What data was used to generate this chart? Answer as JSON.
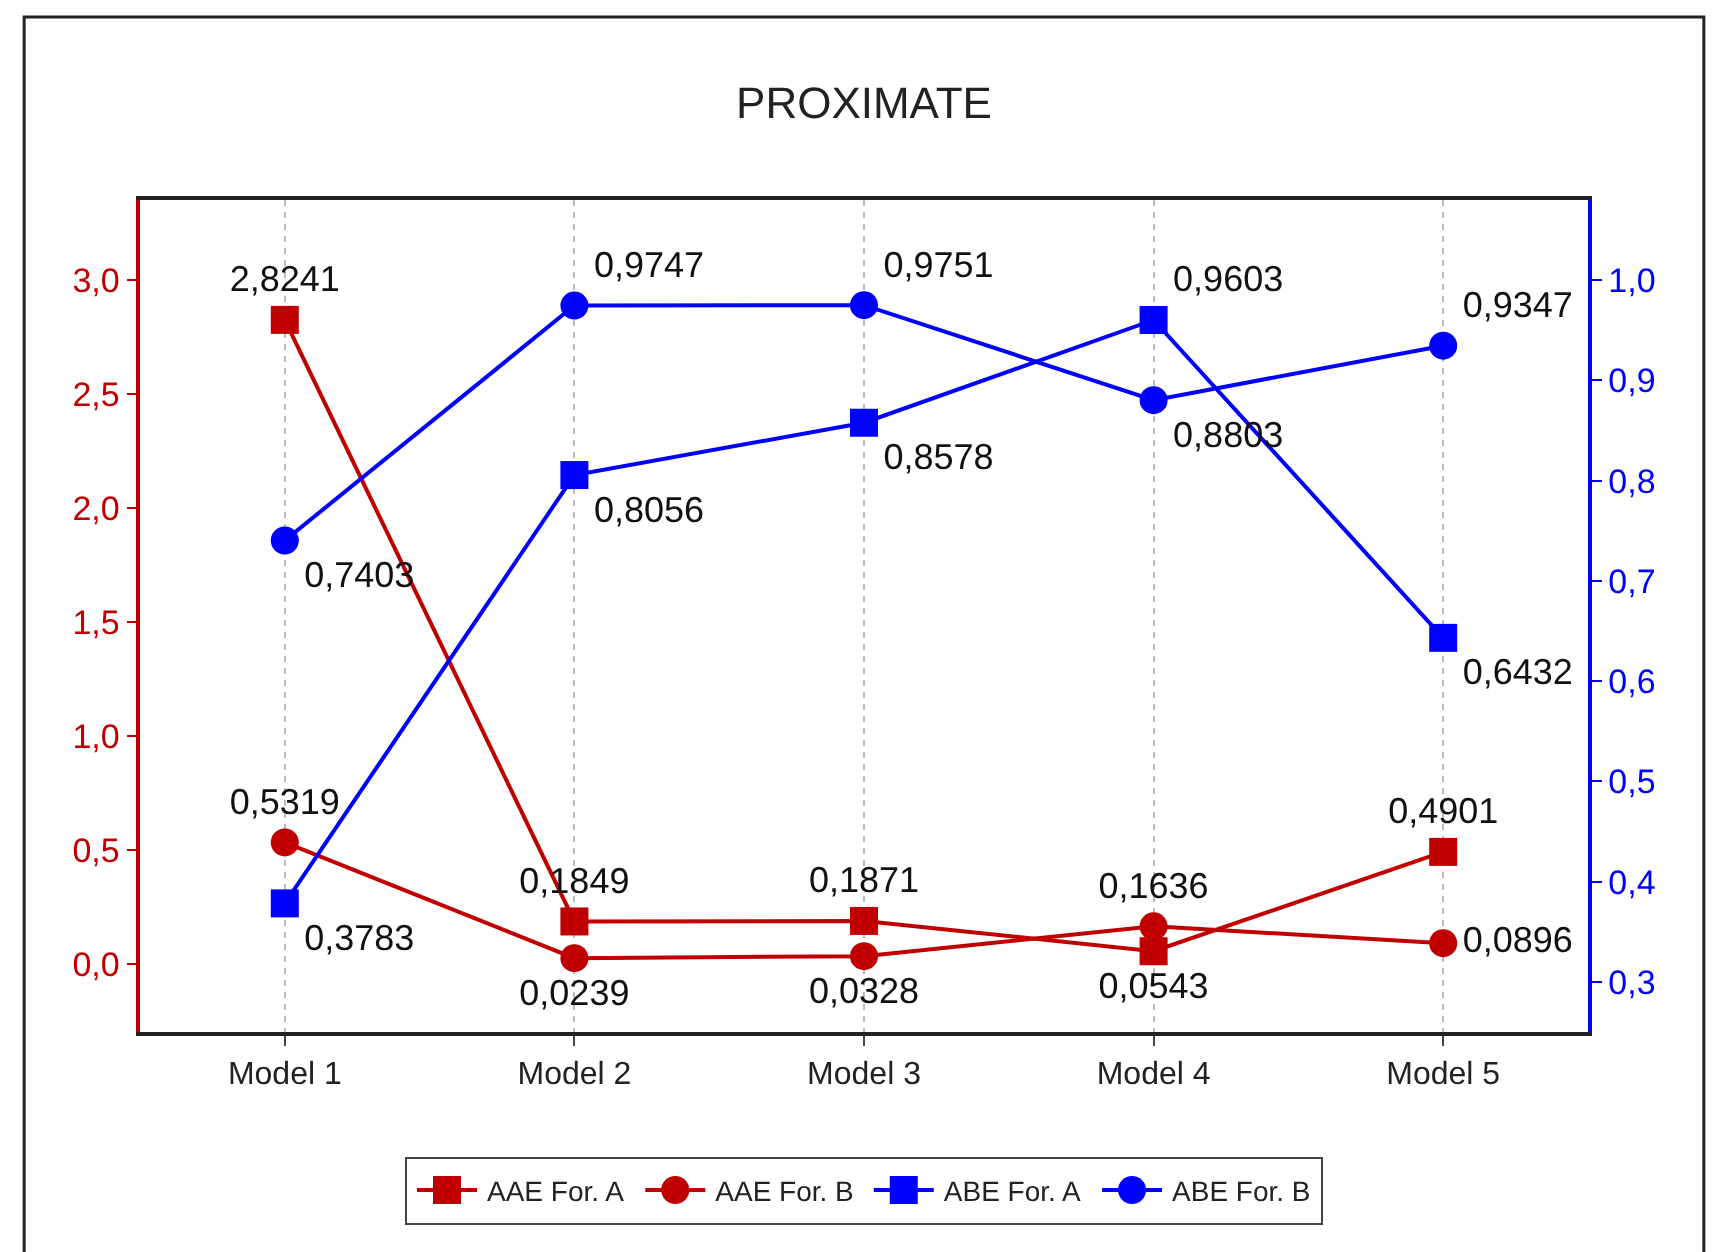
{
  "chart_data": {
    "type": "line",
    "title": "PROXIMATE",
    "categories": [
      "Model 1",
      "Model 2",
      "Model 3",
      "Model 4",
      "Model 5"
    ],
    "series": [
      {
        "name": "AAE For. A",
        "color": "#c00000",
        "marker": "square",
        "values": [
          2.8241,
          0.1849,
          0.1871,
          0.0543,
          0.4901
        ],
        "value_labels": [
          "2,8241",
          "0,1849",
          "0,1871",
          "0,0543",
          "0,4901"
        ]
      },
      {
        "name": "AAE For. B",
        "color": "#c00000",
        "marker": "circle",
        "values": [
          0.5319,
          0.0239,
          0.0328,
          0.1636,
          0.0896
        ],
        "value_labels": [
          "0,5319",
          "0,0239",
          "0,0328",
          "0,1636",
          "0,0896"
        ]
      },
      {
        "name": "ABE For. A",
        "color": "#0000ff",
        "marker": "square",
        "axis": "y2",
        "values": [
          0.3783,
          0.8056,
          0.8578,
          0.9603,
          0.6432
        ],
        "value_labels": [
          "0,3783",
          "0,8056",
          "0,8578",
          "0,9603",
          "0,6432"
        ]
      },
      {
        "name": "ABE For. B",
        "color": "#0000ff",
        "marker": "circle",
        "axis": "y2",
        "values": [
          0.7403,
          0.9747,
          0.9751,
          0.8803,
          0.9347
        ],
        "value_labels": [
          "0,7403",
          "0,9747",
          "0,9751",
          "0,8803",
          "0,9347"
        ]
      }
    ],
    "ylim": [
      -0.3,
      3.35
    ],
    "yticks": [
      {
        "value": 0,
        "label": "0,0"
      },
      {
        "value": 0.5,
        "label": "0,5"
      },
      {
        "value": 1,
        "label": "1,0"
      },
      {
        "value": 1.5,
        "label": "1,5"
      },
      {
        "value": 2,
        "label": "2,0"
      },
      {
        "value": 2.5,
        "label": "2,5"
      },
      {
        "value": 3,
        "label": "3,0"
      }
    ],
    "y2lim": [
      0.25,
      1.08
    ],
    "y2ticks": [
      {
        "value": 0.3,
        "label": "0,3"
      },
      {
        "value": 0.4,
        "label": "0,4"
      },
      {
        "value": 0.5,
        "label": "0,5"
      },
      {
        "value": 0.6,
        "label": "0,6"
      },
      {
        "value": 0.7,
        "label": "0,7"
      },
      {
        "value": 0.8,
        "label": "0,8"
      },
      {
        "value": 0.9,
        "label": "0,9"
      },
      {
        "value": 1,
        "label": "1,0"
      }
    ],
    "grid": "x",
    "legend": "bottom",
    "line_style": "solid"
  }
}
